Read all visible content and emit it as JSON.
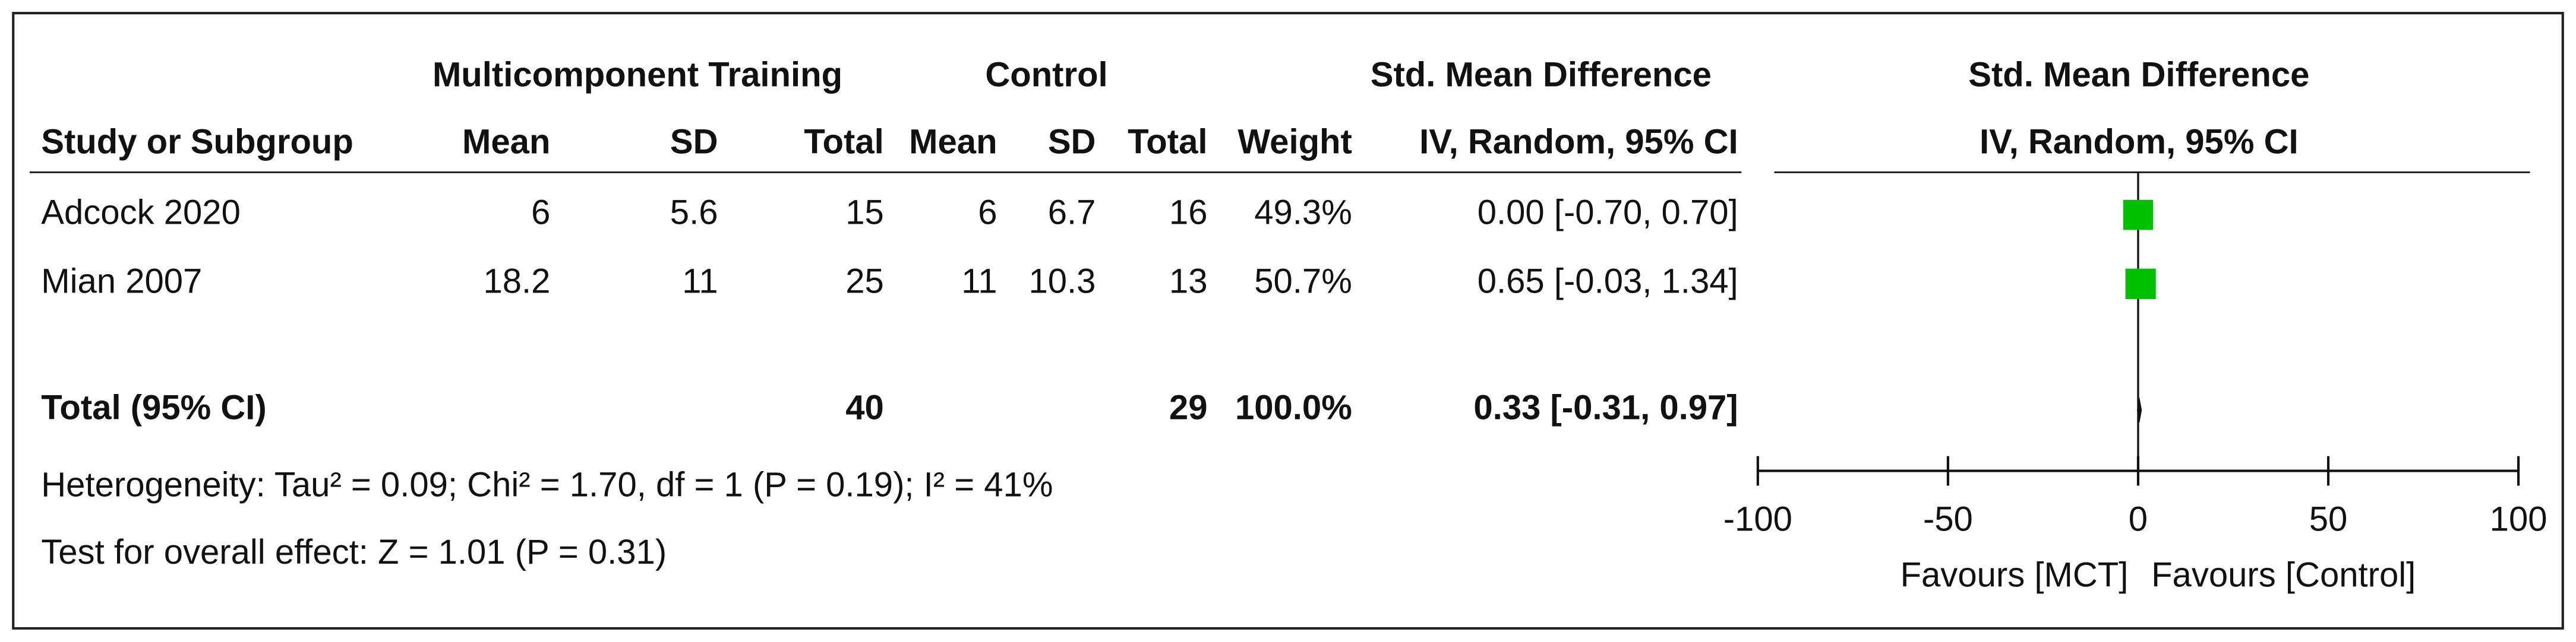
{
  "chart_data": {
    "type": "forest",
    "group_headers": [
      "Multicomponent Training",
      "Control",
      "Std. Mean Difference",
      "Std. Mean Difference"
    ],
    "column_headers": [
      "Study or Subgroup",
      "Mean",
      "SD",
      "Total",
      "Mean",
      "SD",
      "Total",
      "Weight",
      "IV, Random, 95% CI",
      "IV, Random, 95% CI"
    ],
    "studies": [
      {
        "name": "Adcock 2020",
        "exp_mean": 6,
        "exp_sd": 5.6,
        "exp_total": 15,
        "ctl_mean": 6,
        "ctl_sd": 6.7,
        "ctl_total": 16,
        "weight": 49.3,
        "weight_label": "49.3%",
        "smd": 0,
        "ci_low": -0.7,
        "ci_high": 0.7,
        "ci_label": "0.00 [-0.70, 0.70]"
      },
      {
        "name": "Mian 2007",
        "exp_mean": 18.2,
        "exp_sd": 11,
        "exp_total": 25,
        "ctl_mean": 11,
        "ctl_sd": 10.3,
        "ctl_total": 13,
        "weight": 50.7,
        "weight_label": "50.7%",
        "smd": 0.65,
        "ci_low": -0.03,
        "ci_high": 1.34,
        "ci_label": "0.65 [-0.03, 1.34]"
      }
    ],
    "total": {
      "name": "Total (95% CI)",
      "exp_total": 40,
      "ctl_total": 29,
      "weight": 100,
      "weight_label": "100.0%",
      "smd": 0.33,
      "ci_low": -0.31,
      "ci_high": 0.97,
      "ci_label": "0.33 [-0.31, 0.97]"
    },
    "heterogeneity": "Heterogeneity: Tau² = 0.09; Chi² = 1.70, df = 1 (P = 0.19); I² = 41%",
    "overall_effect": "Test for overall effect: Z = 1.01 (P = 0.31)",
    "xlim": [
      -100,
      100
    ],
    "xticks": [
      -100,
      -50,
      0,
      50,
      100
    ],
    "favours": [
      "Favours [MCT]",
      "Favours [Control]"
    ],
    "color": "#00c000"
  }
}
